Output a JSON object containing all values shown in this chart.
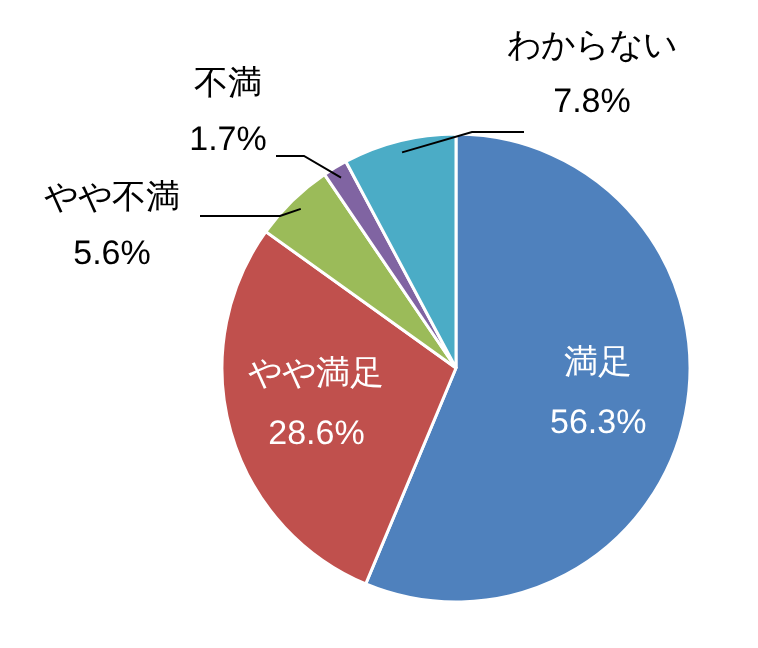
{
  "chart_data": {
    "type": "pie",
    "categories": [
      "満足",
      "やや満足",
      "やや不満",
      "不満",
      "わからない"
    ],
    "values": [
      56.3,
      28.6,
      5.6,
      1.7,
      7.8
    ],
    "colors": [
      "#4f81bd",
      "#c0504d",
      "#9bbb59",
      "#8064a2",
      "#4bacc6"
    ],
    "value_labels": [
      "56.3%",
      "28.6%",
      "5.6%",
      "1.7%",
      "7.8%"
    ]
  }
}
